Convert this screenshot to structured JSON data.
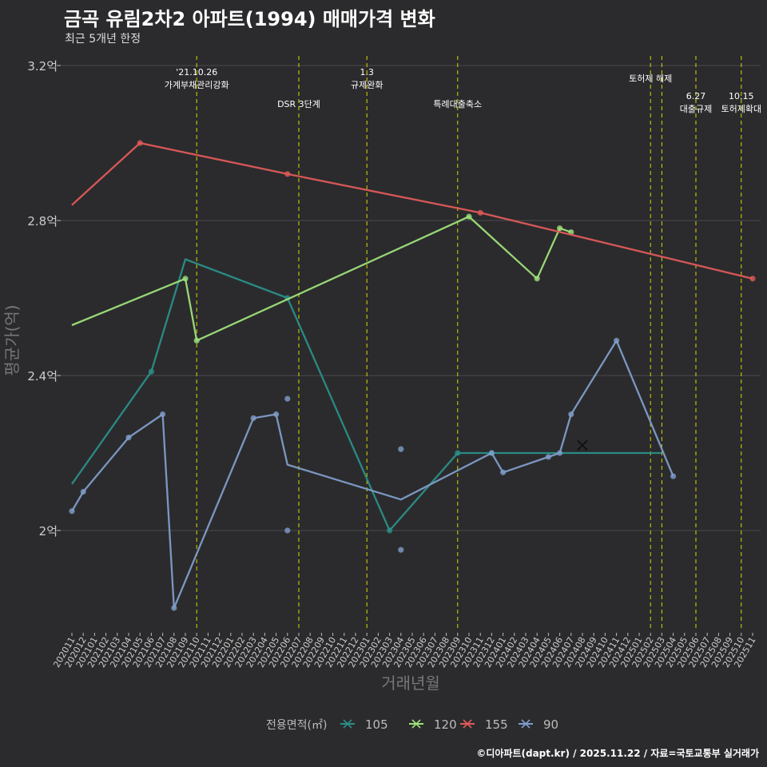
{
  "header": {
    "title": "금곡 유림2차2 아파트(1994) 매매가격 변화",
    "subtitle": "최근 5개년 한정"
  },
  "footer": {
    "credit": "©디아파트(dapt.kr) / 2025.11.22 / 자료=국토교통부 실거래가"
  },
  "colors": {
    "background": "#2b2b2d",
    "grid": "#4a4a4c",
    "event_line": "#d8d800"
  },
  "chart_data": {
    "type": "line",
    "title": "금곡 유림2차2 아파트(1994) 매매가격 변화",
    "xlabel": "거래년월",
    "ylabel": "평균가(억)",
    "ylim": [
      1.75,
      3.23
    ],
    "yticks": [
      2.0,
      2.4,
      2.8,
      3.2
    ],
    "ytick_labels": [
      "2억",
      "2.4억",
      "2.8억",
      "3.2억"
    ],
    "grid": true,
    "legend": {
      "title": "전용면적(㎡)",
      "position": "bottom",
      "entries": [
        "105",
        "120",
        "155",
        "90"
      ]
    },
    "categories": [
      "202011",
      "202012",
      "202101",
      "202102",
      "202103",
      "202104",
      "202105",
      "202106",
      "202107",
      "202108",
      "202109",
      "202110",
      "202111",
      "202112",
      "202201",
      "202202",
      "202203",
      "202204",
      "202205",
      "202206",
      "202207",
      "202208",
      "202209",
      "202210",
      "202211",
      "202212",
      "202301",
      "202302",
      "202303",
      "202304",
      "202305",
      "202306",
      "202307",
      "202308",
      "202309",
      "202310",
      "202311",
      "202312",
      "202401",
      "202402",
      "202403",
      "202404",
      "202405",
      "202406",
      "202407",
      "202408",
      "202409",
      "202410",
      "202411",
      "202412",
      "202501",
      "202502",
      "202503",
      "202504",
      "202505",
      "202506",
      "202507",
      "202508",
      "202509",
      "202510",
      "202511"
    ],
    "series": [
      {
        "name": "105",
        "color": "#2a8f87",
        "line": [
          [
            "202011",
            2.12
          ],
          [
            "202106",
            2.41
          ],
          [
            "202109",
            2.7
          ],
          [
            "202206",
            2.6
          ],
          [
            "202303",
            2.0
          ],
          [
            "202309",
            2.2
          ],
          [
            "202312",
            2.2
          ],
          [
            "202503",
            2.2
          ]
        ],
        "points": [
          [
            "202106",
            2.41
          ],
          [
            "202206",
            2.6
          ],
          [
            "202303",
            2.0
          ],
          [
            "202309",
            2.2
          ],
          [
            "202312",
            2.2
          ]
        ]
      },
      {
        "name": "120",
        "color": "#9ee07a",
        "line": [
          [
            "202011",
            2.53
          ],
          [
            "202109",
            2.65
          ],
          [
            "202110",
            2.49
          ],
          [
            "202310",
            2.81
          ],
          [
            "202404",
            2.65
          ],
          [
            "202406",
            2.78
          ],
          [
            "202407",
            2.77
          ]
        ],
        "points": [
          [
            "202109",
            2.65
          ],
          [
            "202110",
            2.49
          ],
          [
            "202310",
            2.81
          ],
          [
            "202404",
            2.65
          ],
          [
            "202406",
            2.78
          ],
          [
            "202407",
            2.77
          ]
        ]
      },
      {
        "name": "155",
        "color": "#e05a5a",
        "line": [
          [
            "202011",
            2.84
          ],
          [
            "202105",
            3.0
          ],
          [
            "202206",
            2.92
          ],
          [
            "202311",
            2.82
          ],
          [
            "202511",
            2.65
          ]
        ],
        "points": [
          [
            "202105",
            3.0
          ],
          [
            "202206",
            2.92
          ],
          [
            "202311",
            2.82
          ],
          [
            "202511",
            2.65
          ]
        ]
      },
      {
        "name": "90",
        "color": "#7f9dc9",
        "line": [
          [
            "202011",
            2.05
          ],
          [
            "202012",
            2.1
          ],
          [
            "202104",
            2.24
          ],
          [
            "202107",
            2.3
          ],
          [
            "202108",
            1.8
          ],
          [
            "202203",
            2.29
          ],
          [
            "202205",
            2.3
          ],
          [
            "202206",
            2.17
          ],
          [
            "202304",
            2.08
          ],
          [
            "202312",
            2.2
          ],
          [
            "202401",
            2.15
          ],
          [
            "202405",
            2.19
          ],
          [
            "202406",
            2.2
          ],
          [
            "202407",
            2.3
          ],
          [
            "202411",
            2.49
          ],
          [
            "202504",
            2.14
          ]
        ],
        "points": [
          [
            "202011",
            2.05
          ],
          [
            "202012",
            2.1
          ],
          [
            "202104",
            2.24
          ],
          [
            "202107",
            2.3
          ],
          [
            "202108",
            1.8
          ],
          [
            "202203",
            2.29
          ],
          [
            "202205",
            2.3
          ],
          [
            "202206",
            2.34
          ],
          [
            "202206",
            2.0
          ],
          [
            "202304",
            2.21
          ],
          [
            "202304",
            1.95
          ],
          [
            "202312",
            2.2
          ],
          [
            "202401",
            2.15
          ],
          [
            "202405",
            2.19
          ],
          [
            "202406",
            2.2
          ],
          [
            "202407",
            2.3
          ],
          [
            "202411",
            2.49
          ],
          [
            "202504",
            2.14
          ]
        ],
        "marker": [
          "202408",
          2.22
        ]
      }
    ],
    "events": [
      {
        "x": "202110",
        "date": "'21.10.26",
        "label": "가계부채관리강화",
        "row": 1
      },
      {
        "x": "202207",
        "date": "",
        "label": "DSR 3단계",
        "row": 2
      },
      {
        "x": "202301",
        "date": "1.3",
        "label": "규제완화",
        "row": 1
      },
      {
        "x": "202309",
        "date": "",
        "label": "특례대출축소",
        "row": 2
      },
      {
        "x": "202502",
        "date": "",
        "label": "토허제 해제",
        "row": 1
      },
      {
        "x": "202503",
        "date": "",
        "label": "",
        "row": 0
      },
      {
        "x": "202506",
        "date": "6.27",
        "label": "대출규제",
        "row": 3
      },
      {
        "x": "202510",
        "date": "10.15",
        "label": "토허제확대",
        "row": 3
      }
    ]
  }
}
